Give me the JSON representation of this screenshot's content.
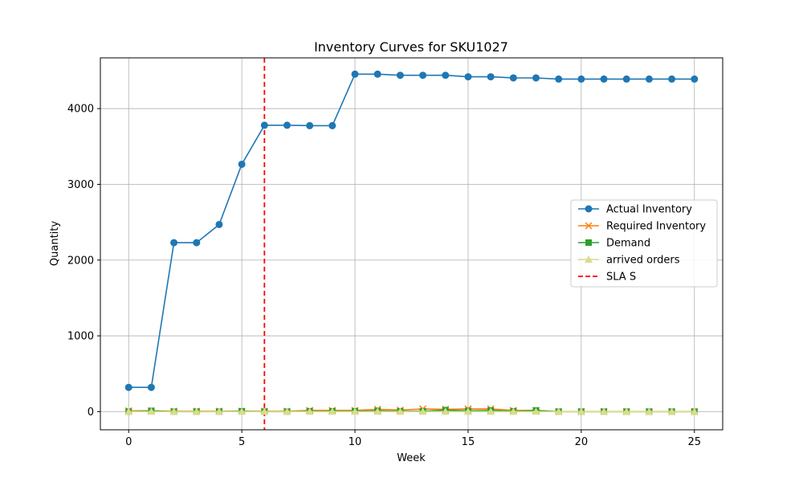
{
  "chart_data": {
    "type": "line",
    "title": "Inventory Curves for SKU1027",
    "xlabel": "Week",
    "ylabel": "Quantity",
    "xlim": [
      -1.25,
      26.25
    ],
    "ylim": [
      -240,
      4670
    ],
    "xticks": [
      0,
      5,
      10,
      15,
      20,
      25
    ],
    "yticks": [
      0,
      1000,
      2000,
      3000,
      4000
    ],
    "grid": true,
    "legend_position": "center-right",
    "x": [
      0,
      1,
      2,
      3,
      4,
      5,
      6,
      7,
      8,
      9,
      10,
      11,
      12,
      13,
      14,
      15,
      16,
      17,
      18,
      19,
      20,
      21,
      22,
      23,
      24,
      25
    ],
    "series": [
      {
        "name": "Actual Inventory",
        "color": "#1f77b4",
        "marker": "circle",
        "values": [
          320,
          320,
          2230,
          2230,
          2470,
          3265,
          3780,
          3780,
          3775,
          3775,
          4455,
          4455,
          4440,
          4440,
          4440,
          4420,
          4420,
          4405,
          4405,
          4390,
          4390,
          4390,
          4390,
          4390,
          4390,
          4390
        ]
      },
      {
        "name": "Required Inventory",
        "color": "#ff7f0e",
        "marker": "x",
        "values": [
          10,
          10,
          5,
          5,
          5,
          5,
          5,
          5,
          15,
          15,
          15,
          30,
          20,
          35,
          30,
          35,
          35,
          15,
          15,
          0,
          0,
          0,
          0,
          0,
          0,
          0
        ]
      },
      {
        "name": "Demand",
        "color": "#2ca02c",
        "marker": "square",
        "values": [
          0,
          10,
          0,
          0,
          0,
          5,
          0,
          0,
          5,
          5,
          5,
          10,
          5,
          5,
          20,
          10,
          15,
          5,
          15,
          0,
          0,
          0,
          0,
          0,
          0,
          0
        ]
      },
      {
        "name": "arrived orders",
        "color": "#dbdb8d",
        "marker": "triangle",
        "values": [
          0,
          0,
          0,
          0,
          0,
          0,
          0,
          0,
          0,
          0,
          0,
          0,
          0,
          0,
          0,
          0,
          0,
          0,
          0,
          0,
          0,
          0,
          0,
          0,
          0,
          0
        ]
      }
    ],
    "vlines": [
      {
        "name": "SLA S",
        "x": 6,
        "color": "#ff0000",
        "style": "dashed"
      }
    ]
  }
}
